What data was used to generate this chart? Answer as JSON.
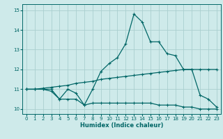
{
  "xlabel": "Humidex (Indice chaleur)",
  "xlim": [
    -0.5,
    23.5
  ],
  "ylim": [
    9.75,
    15.3
  ],
  "yticks": [
    10,
    11,
    12,
    13,
    14,
    15
  ],
  "xticks": [
    0,
    1,
    2,
    3,
    4,
    5,
    6,
    7,
    8,
    9,
    10,
    11,
    12,
    13,
    14,
    15,
    16,
    17,
    18,
    19,
    20,
    21,
    22,
    23
  ],
  "bg_color": "#ceeaea",
  "grid_color": "#aacfcf",
  "line_color": "#006666",
  "line1_x": [
    0,
    1,
    2,
    3,
    4,
    5,
    6,
    7,
    8,
    9,
    10,
    11,
    12,
    13,
    14,
    15,
    16,
    17,
    18,
    19,
    20,
    21,
    22,
    23
  ],
  "line1_y": [
    11.0,
    11.0,
    11.0,
    10.9,
    10.5,
    11.0,
    10.8,
    10.2,
    11.0,
    11.9,
    12.3,
    12.6,
    13.3,
    14.8,
    14.4,
    13.4,
    13.4,
    12.8,
    12.7,
    12.0,
    12.0,
    10.7,
    10.5,
    10.1
  ],
  "line2_x": [
    0,
    1,
    2,
    3,
    4,
    5,
    6,
    7,
    8,
    9,
    10,
    11,
    12,
    13,
    14,
    15,
    16,
    17,
    18,
    19,
    20,
    21,
    22,
    23
  ],
  "line2_y": [
    11.0,
    11.0,
    11.0,
    11.0,
    10.5,
    10.5,
    10.5,
    10.2,
    10.3,
    10.3,
    10.3,
    10.3,
    10.3,
    10.3,
    10.3,
    10.3,
    10.2,
    10.2,
    10.2,
    10.1,
    10.1,
    10.0,
    10.0,
    10.0
  ],
  "line3_x": [
    0,
    1,
    2,
    3,
    4,
    5,
    6,
    7,
    8,
    9,
    10,
    11,
    12,
    13,
    14,
    15,
    16,
    17,
    18,
    19,
    20,
    21,
    22,
    23
  ],
  "line3_y": [
    11.0,
    11.0,
    11.05,
    11.1,
    11.15,
    11.2,
    11.3,
    11.35,
    11.4,
    11.5,
    11.55,
    11.6,
    11.65,
    11.7,
    11.75,
    11.8,
    11.85,
    11.9,
    11.95,
    12.0,
    12.0,
    12.0,
    12.0,
    12.0
  ]
}
